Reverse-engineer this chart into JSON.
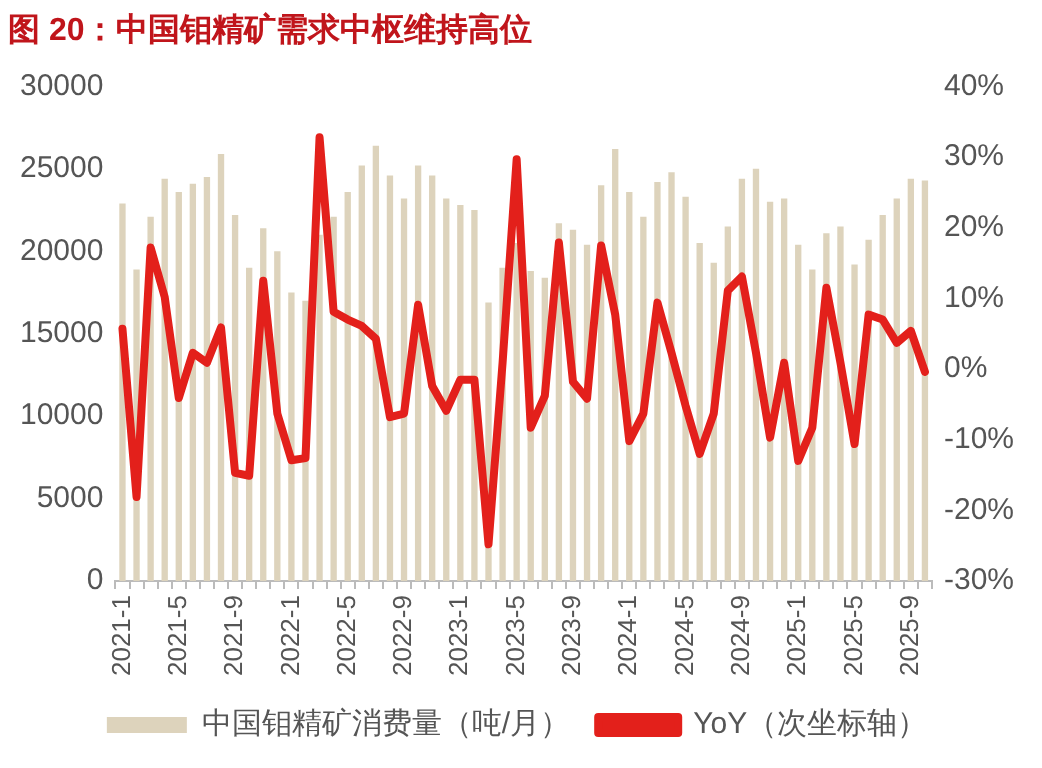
{
  "chart_data": {
    "type": "bar",
    "title": "图 20：中国钼精矿需求中枢维持高位",
    "categories": [
      "2021-1",
      null,
      null,
      null,
      "2021-5",
      null,
      null,
      null,
      "2021-9",
      null,
      null,
      null,
      "2022-1",
      null,
      null,
      null,
      "2022-5",
      null,
      null,
      null,
      "2022-9",
      null,
      null,
      null,
      "2023-1",
      null,
      null,
      null,
      "2023-5",
      null,
      null,
      null,
      "2023-9",
      null,
      null,
      null,
      "2024-1",
      null,
      null,
      null,
      "2024-5",
      null,
      null,
      null,
      "2024-9",
      null,
      null,
      null,
      "2025-1",
      null,
      null,
      null,
      "2025-5",
      null,
      null,
      null,
      "2025-9",
      null
    ],
    "series": [
      {
        "name": "中国钼精矿消费量（吨/月）",
        "color": "#ddd3bc",
        "values": [
          22900,
          18900,
          22100,
          24400,
          23600,
          24100,
          24500,
          25900,
          22200,
          19000,
          21400,
          20000,
          17500,
          17000,
          21000,
          22100,
          23600,
          25200,
          26400,
          24600,
          23200,
          25200,
          24600,
          23200,
          22800,
          22500,
          16900,
          19000,
          20500,
          18800,
          18400,
          21700,
          21300,
          20400,
          24000,
          26200,
          23600,
          22100,
          24200,
          24800,
          23300,
          20500,
          19300,
          21500,
          24400,
          25000,
          23000,
          23200,
          20400,
          18900,
          21100,
          21500,
          19200,
          20700,
          22200,
          23200,
          24400,
          24300
        ]
      },
      {
        "name": "YoY（次坐标轴）",
        "type": "line",
        "axis": "y2",
        "color": "#e3201b",
        "values": [
          5.7,
          -18.1,
          17.2,
          10.2,
          -4.1,
          2.3,
          0.9,
          5.9,
          -14.7,
          -15.1,
          12.5,
          -6.3,
          -12.9,
          -12.6,
          32.8,
          8.1,
          7.0,
          6.1,
          4.3,
          -6.8,
          -6.3,
          9.1,
          -2.4,
          -5.9,
          -1.5,
          -1.5,
          -24.8,
          0.9,
          29.7,
          -8.3,
          -3.8,
          17.9,
          -1.8,
          -4.2,
          17.5,
          7.7,
          -10.2,
          -6.3,
          9.4,
          2.3,
          -5.2,
          -12.0,
          -6.3,
          11.1,
          13.1,
          2.3,
          -9.7,
          0.9,
          -13.0,
          -8.3,
          11.5,
          0.9,
          -10.6,
          7.7,
          7.0,
          3.7,
          5.4,
          -0.4
        ]
      }
    ],
    "ylim": [
      0,
      30000
    ],
    "yticks": [
      0,
      5000,
      10000,
      15000,
      20000,
      25000,
      30000
    ],
    "y2lim": [
      -30,
      40
    ],
    "y2ticks": [
      {
        "value": -30,
        "label": "-30%"
      },
      {
        "value": -20,
        "label": "-20%"
      },
      {
        "value": -10,
        "label": "-10%"
      },
      {
        "value": 0,
        "label": "0%"
      },
      {
        "value": 10,
        "label": "10%"
      },
      {
        "value": 20,
        "label": "20%"
      },
      {
        "value": 30,
        "label": "30%"
      },
      {
        "value": 40,
        "label": "40%"
      }
    ],
    "legend": "bottom"
  }
}
